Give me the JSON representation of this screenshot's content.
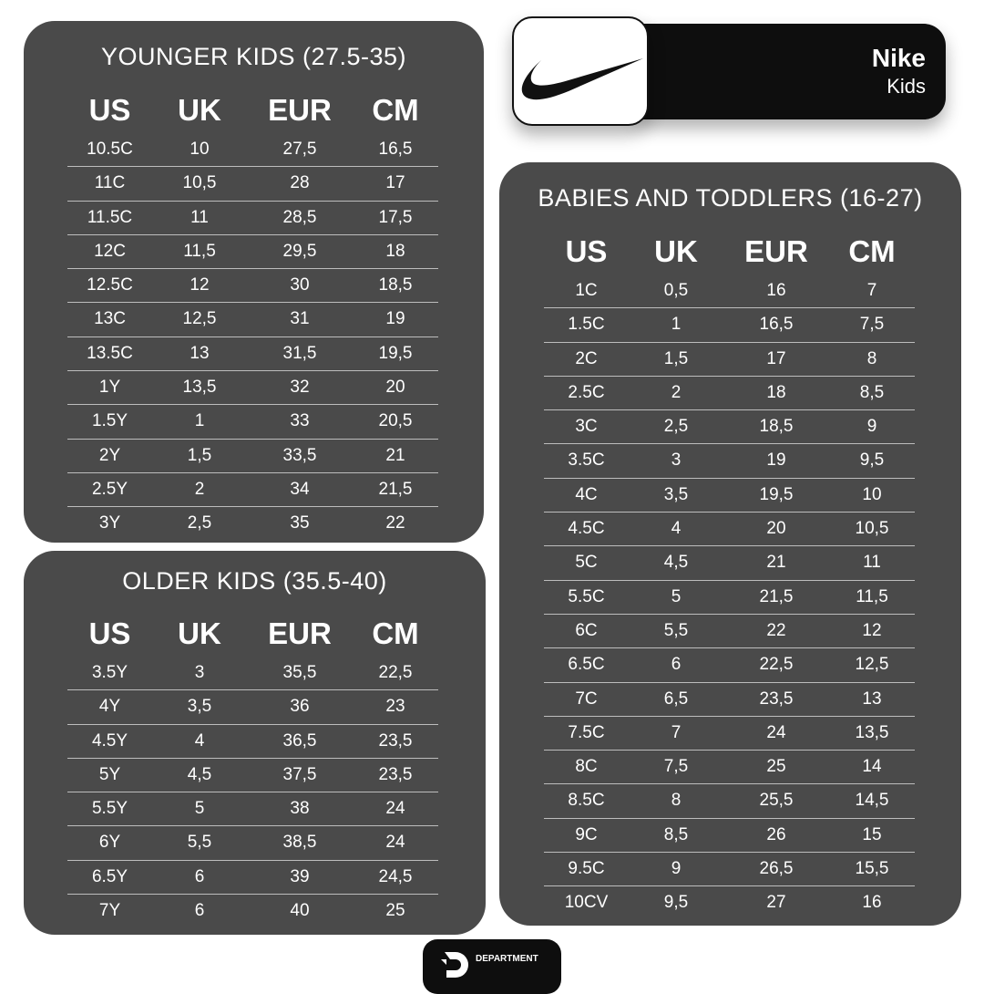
{
  "brand": {
    "name": "Nike",
    "subtitle": "Kids",
    "logo_icon": "swoosh-icon"
  },
  "footer": {
    "logo_text": "DEPARTMENT",
    "logo_icon": "department-d-icon"
  },
  "colors": {
    "panel": "#4a4a4a",
    "badge": "#0e0e0e",
    "text": "#ffffff"
  },
  "tables": [
    {
      "title": "YOUNGER KIDS (27.5-35)",
      "headers": [
        "US",
        "UK",
        "EUR",
        "CM"
      ],
      "rows": [
        [
          "10.5C",
          "10",
          "27,5",
          "16,5"
        ],
        [
          "11C",
          "10,5",
          "28",
          "17"
        ],
        [
          "11.5C",
          "11",
          "28,5",
          "17,5"
        ],
        [
          "12C",
          "11,5",
          "29,5",
          "18"
        ],
        [
          "12.5C",
          "12",
          "30",
          "18,5"
        ],
        [
          "13C",
          "12,5",
          "31",
          "19"
        ],
        [
          "13.5C",
          "13",
          "31,5",
          "19,5"
        ],
        [
          "1Y",
          "13,5",
          "32",
          "20"
        ],
        [
          "1.5Y",
          "1",
          "33",
          "20,5"
        ],
        [
          "2Y",
          "1,5",
          "33,5",
          "21"
        ],
        [
          "2.5Y",
          "2",
          "34",
          "21,5"
        ],
        [
          "3Y",
          "2,5",
          "35",
          "22"
        ]
      ]
    },
    {
      "title": "OLDER KIDS (35.5-40)",
      "headers": [
        "US",
        "UK",
        "EUR",
        "CM"
      ],
      "rows": [
        [
          "3.5Y",
          "3",
          "35,5",
          "22,5"
        ],
        [
          "4Y",
          "3,5",
          "36",
          "23"
        ],
        [
          "4.5Y",
          "4",
          "36,5",
          "23,5"
        ],
        [
          "5Y",
          "4,5",
          "37,5",
          "23,5"
        ],
        [
          "5.5Y",
          "5",
          "38",
          "24"
        ],
        [
          "6Y",
          "5,5",
          "38,5",
          "24"
        ],
        [
          "6.5Y",
          "6",
          "39",
          "24,5"
        ],
        [
          "7Y",
          "6",
          "40",
          "25"
        ]
      ]
    },
    {
      "title": "BABIES AND TODDLERS (16-27)",
      "headers": [
        "US",
        "UK",
        "EUR",
        "CM"
      ],
      "rows": [
        [
          "1C",
          "0,5",
          "16",
          "7"
        ],
        [
          "1.5C",
          "1",
          "16,5",
          "7,5"
        ],
        [
          "2C",
          "1,5",
          "17",
          "8"
        ],
        [
          "2.5C",
          "2",
          "18",
          "8,5"
        ],
        [
          "3C",
          "2,5",
          "18,5",
          "9"
        ],
        [
          "3.5C",
          "3",
          "19",
          "9,5"
        ],
        [
          "4C",
          "3,5",
          "19,5",
          "10"
        ],
        [
          "4.5C",
          "4",
          "20",
          "10,5"
        ],
        [
          "5C",
          "4,5",
          "21",
          "11"
        ],
        [
          "5.5C",
          "5",
          "21,5",
          "11,5"
        ],
        [
          "6C",
          "5,5",
          "22",
          "12"
        ],
        [
          "6.5C",
          "6",
          "22,5",
          "12,5"
        ],
        [
          "7C",
          "6,5",
          "23,5",
          "13"
        ],
        [
          "7.5C",
          "7",
          "24",
          "13,5"
        ],
        [
          "8C",
          "7,5",
          "25",
          "14"
        ],
        [
          "8.5C",
          "8",
          "25,5",
          "14,5"
        ],
        [
          "9C",
          "8,5",
          "26",
          "15"
        ],
        [
          "9.5C",
          "9",
          "26,5",
          "15,5"
        ],
        [
          "10CV",
          "9,5",
          "27",
          "16"
        ]
      ]
    }
  ]
}
